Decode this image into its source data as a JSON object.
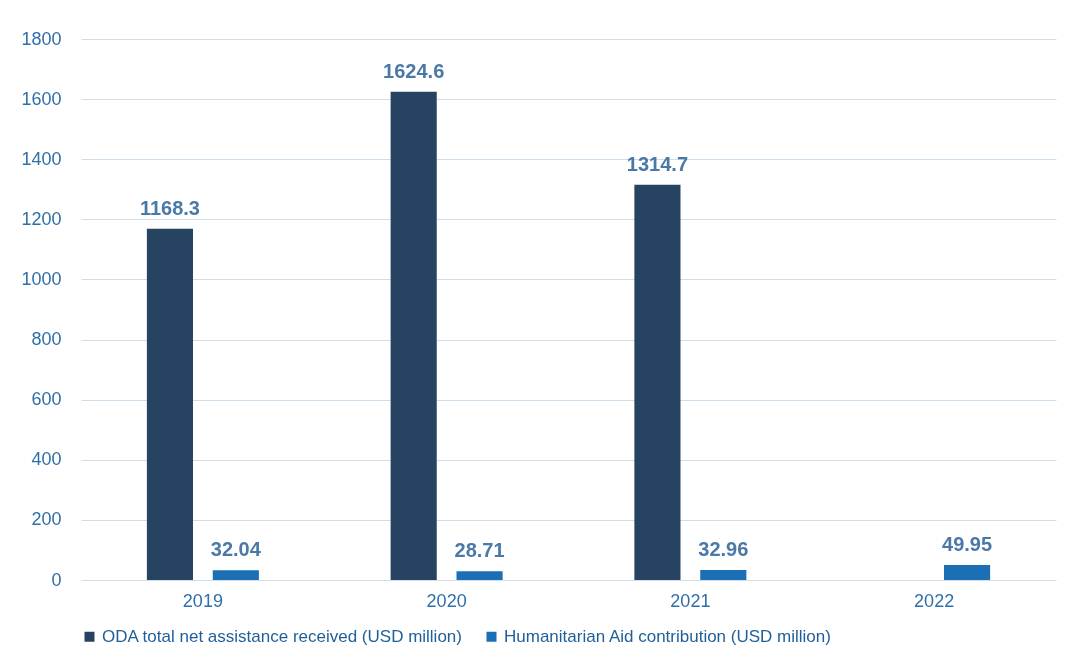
{
  "chart_data": {
    "type": "bar",
    "categories": [
      "2019",
      "2020",
      "2021",
      "2022"
    ],
    "series": [
      {
        "name": "ODA total net assistance received (USD million)",
        "color": "#264461",
        "values": [
          1168.3,
          1624.6,
          1314.7,
          null
        ]
      },
      {
        "name": "Humanitarian Aid contribution (USD million)",
        "color": "#1a6fb5",
        "values": [
          32.04,
          28.71,
          32.96,
          49.95
        ]
      }
    ],
    "ylim": [
      0,
      1800
    ],
    "yticks": [
      0,
      200,
      400,
      600,
      800,
      1000,
      1200,
      1400,
      1600,
      1800
    ],
    "grid": "y",
    "legend": "bottom",
    "data_labels": true
  }
}
